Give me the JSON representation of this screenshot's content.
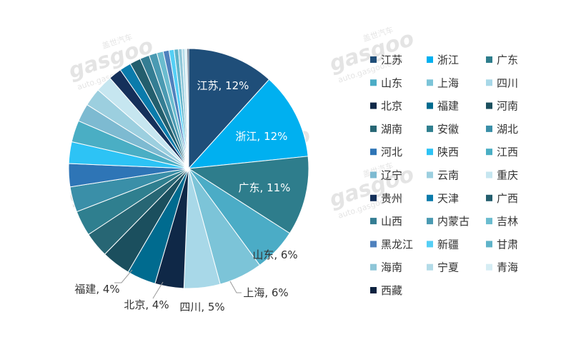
{
  "chart_data": {
    "type": "pie",
    "title": "",
    "series": [
      {
        "name": "江苏",
        "value": 12,
        "label": "江苏, 12%",
        "color": "#1f4e79"
      },
      {
        "name": "浙江",
        "value": 12,
        "label": "浙江, 12%",
        "color": "#00b0f0"
      },
      {
        "name": "广东",
        "value": 11,
        "label": "广东, 11%",
        "color": "#2e7d8c"
      },
      {
        "name": "山东",
        "value": 6,
        "label": "山东, 6%",
        "color": "#4bacc6"
      },
      {
        "name": "上海",
        "value": 6,
        "label": "上海, 6%",
        "color": "#7cc4d8"
      },
      {
        "name": "四川",
        "value": 5,
        "label": "四川, 5%",
        "color": "#a8d8e8"
      },
      {
        "name": "北京",
        "value": 4,
        "label": "北京, 4%",
        "color": "#0f2847"
      },
      {
        "name": "福建",
        "value": 4,
        "label": "福建, 4%",
        "color": "#006b8f"
      },
      {
        "name": "河南",
        "value": 4,
        "label": "",
        "color": "#1b4f5e"
      },
      {
        "name": "湖南",
        "value": 3.5,
        "label": "",
        "color": "#276674"
      },
      {
        "name": "安徽",
        "value": 3.5,
        "label": "",
        "color": "#2f7f8f"
      },
      {
        "name": "湖北",
        "value": 3.5,
        "label": "",
        "color": "#3a8fa8"
      },
      {
        "name": "河北",
        "value": 3.2,
        "label": "",
        "color": "#2e75b6"
      },
      {
        "name": "陕西",
        "value": 3,
        "label": "",
        "color": "#2dc3f5"
      },
      {
        "name": "江西",
        "value": 3,
        "label": "",
        "color": "#4aaec4"
      },
      {
        "name": "辽宁",
        "value": 2.5,
        "label": "",
        "color": "#7dbad1"
      },
      {
        "name": "云南",
        "value": 2.5,
        "label": "",
        "color": "#9ccfdf"
      },
      {
        "name": "重庆",
        "value": 2.3,
        "label": "",
        "color": "#c6e6f0"
      },
      {
        "name": "贵州",
        "value": 1.8,
        "label": "",
        "color": "#15305a"
      },
      {
        "name": "天津",
        "value": 1.6,
        "label": "",
        "color": "#0a7bab"
      },
      {
        "name": "广西",
        "value": 1.5,
        "label": "",
        "color": "#235e6d"
      },
      {
        "name": "山西",
        "value": 1.3,
        "label": "",
        "color": "#347d93"
      },
      {
        "name": "内蒙古",
        "value": 1.1,
        "label": "",
        "color": "#4a9ab2"
      },
      {
        "name": "吉林",
        "value": 0.9,
        "label": "",
        "color": "#6bbccf"
      },
      {
        "name": "黑龙江",
        "value": 0.8,
        "label": "",
        "color": "#4f81bd"
      },
      {
        "name": "新疆",
        "value": 0.7,
        "label": "",
        "color": "#55cff5"
      },
      {
        "name": "甘肃",
        "value": 0.6,
        "label": "",
        "color": "#5fb3c9"
      },
      {
        "name": "海南",
        "value": 0.5,
        "label": "",
        "color": "#8ec6d8"
      },
      {
        "name": "宁夏",
        "value": 0.4,
        "label": "",
        "color": "#b3dbe8"
      },
      {
        "name": "青海",
        "value": 0.3,
        "label": "",
        "color": "#d6edf4"
      },
      {
        "name": "西藏",
        "value": 0.2,
        "label": "",
        "color": "#0d2240"
      }
    ],
    "legend_position": "right"
  },
  "watermark": {
    "text": "gasgoo",
    "brand_cn": "盖世汽车",
    "url": "auto.gasgoo.com"
  }
}
